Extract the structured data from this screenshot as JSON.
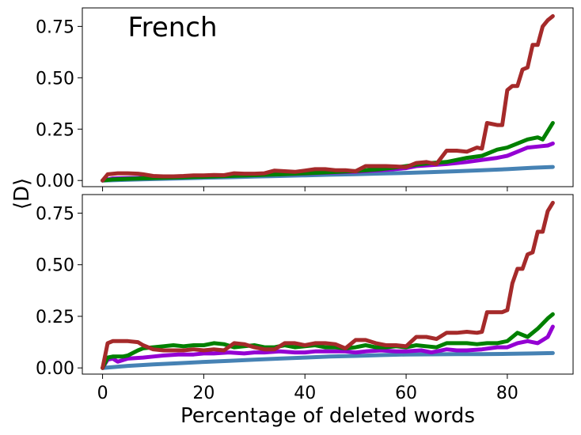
{
  "figure": {
    "ylabel": "⟨D⟩",
    "xlabel": "Percentage of deleted words"
  },
  "chart_data": [
    {
      "type": "line",
      "title": "",
      "annotation": "French",
      "xlabel": "",
      "ylabel": "⟨D⟩",
      "xlim": [
        -4,
        93
      ],
      "ylim": [
        -0.03,
        0.84
      ],
      "xticks": [
        0,
        20,
        40,
        60,
        80
      ],
      "yticks": [
        0.0,
        0.25,
        0.5,
        0.75
      ],
      "ytick_labels": [
        "0.00",
        "0.25",
        "0.50",
        "0.75"
      ],
      "xtick_labels_visible": false,
      "grid": false,
      "legend": "none",
      "series": [
        {
          "color": "#4682b4",
          "x": [
            0,
            5,
            10,
            15,
            20,
            25,
            30,
            35,
            40,
            45,
            50,
            55,
            60,
            65,
            70,
            75,
            80,
            85,
            89
          ],
          "y": [
            0.0,
            0.004,
            0.007,
            0.01,
            0.013,
            0.016,
            0.019,
            0.022,
            0.025,
            0.028,
            0.031,
            0.034,
            0.037,
            0.041,
            0.045,
            0.05,
            0.055,
            0.062,
            0.066
          ]
        },
        {
          "color": "#9400d3",
          "x": [
            0,
            2,
            5,
            10,
            15,
            20,
            25,
            30,
            35,
            40,
            45,
            50,
            55,
            60,
            62,
            65,
            68,
            70,
            72,
            75,
            78,
            80,
            82,
            84,
            86,
            88,
            89
          ],
          "y": [
            0.0,
            0.01,
            0.012,
            0.014,
            0.017,
            0.02,
            0.023,
            0.027,
            0.03,
            0.034,
            0.038,
            0.043,
            0.05,
            0.06,
            0.07,
            0.075,
            0.08,
            0.085,
            0.09,
            0.1,
            0.11,
            0.12,
            0.14,
            0.16,
            0.165,
            0.17,
            0.18
          ]
        },
        {
          "color": "#008000",
          "x": [
            0,
            2,
            5,
            10,
            15,
            20,
            25,
            30,
            35,
            40,
            45,
            50,
            55,
            60,
            63,
            65,
            68,
            70,
            72,
            75,
            78,
            80,
            82,
            84,
            86,
            87,
            88,
            89
          ],
          "y": [
            0.0,
            0.005,
            0.008,
            0.012,
            0.015,
            0.018,
            0.022,
            0.026,
            0.03,
            0.035,
            0.04,
            0.046,
            0.055,
            0.07,
            0.08,
            0.085,
            0.09,
            0.1,
            0.11,
            0.12,
            0.15,
            0.16,
            0.18,
            0.2,
            0.21,
            0.2,
            0.24,
            0.28
          ]
        },
        {
          "color": "#a52a2a",
          "x": [
            0,
            1,
            3,
            5,
            7,
            8,
            10,
            12,
            14,
            16,
            18,
            20,
            22,
            24,
            26,
            28,
            30,
            32,
            34,
            36,
            38,
            40,
            42,
            44,
            46,
            48,
            50,
            52,
            54,
            56,
            58,
            60,
            62,
            64,
            66,
            68,
            70,
            72,
            74,
            75,
            76,
            78,
            79,
            80,
            81,
            82,
            83,
            84,
            85,
            86,
            87,
            88,
            89
          ],
          "y": [
            0.0,
            0.03,
            0.035,
            0.035,
            0.033,
            0.03,
            0.022,
            0.02,
            0.02,
            0.022,
            0.025,
            0.025,
            0.027,
            0.026,
            0.035,
            0.033,
            0.033,
            0.035,
            0.048,
            0.045,
            0.042,
            0.048,
            0.055,
            0.055,
            0.05,
            0.05,
            0.045,
            0.07,
            0.07,
            0.07,
            0.068,
            0.065,
            0.085,
            0.09,
            0.08,
            0.145,
            0.145,
            0.14,
            0.16,
            0.155,
            0.28,
            0.27,
            0.27,
            0.44,
            0.46,
            0.46,
            0.54,
            0.55,
            0.66,
            0.66,
            0.75,
            0.78,
            0.8
          ]
        }
      ]
    },
    {
      "type": "line",
      "title": "",
      "xlabel": "Percentage of deleted words",
      "ylabel": "⟨D⟩",
      "xlim": [
        -4,
        93
      ],
      "ylim": [
        -0.03,
        0.84
      ],
      "xticks": [
        0,
        20,
        40,
        60,
        80
      ],
      "xtick_labels": [
        "0",
        "20",
        "40",
        "60",
        "80"
      ],
      "yticks": [
        0.0,
        0.25,
        0.5,
        0.75
      ],
      "ytick_labels": [
        "0.00",
        "0.25",
        "0.50",
        "0.75"
      ],
      "grid": false,
      "legend": "none",
      "series": [
        {
          "color": "#4682b4",
          "x": [
            0,
            5,
            10,
            15,
            20,
            25,
            30,
            35,
            40,
            45,
            50,
            55,
            60,
            65,
            70,
            75,
            80,
            85,
            89
          ],
          "y": [
            0.0,
            0.01,
            0.017,
            0.023,
            0.029,
            0.034,
            0.04,
            0.045,
            0.05,
            0.055,
            0.058,
            0.062,
            0.065,
            0.066,
            0.067,
            0.067,
            0.068,
            0.07,
            0.072
          ]
        },
        {
          "color": "#9400d3",
          "x": [
            0,
            1,
            2,
            3,
            5,
            8,
            10,
            12,
            15,
            18,
            20,
            22,
            25,
            28,
            30,
            32,
            35,
            38,
            40,
            42,
            45,
            48,
            50,
            52,
            55,
            58,
            60,
            63,
            65,
            68,
            70,
            72,
            75,
            78,
            80,
            82,
            84,
            86,
            88,
            89
          ],
          "y": [
            0.0,
            0.04,
            0.045,
            0.03,
            0.045,
            0.05,
            0.055,
            0.06,
            0.065,
            0.065,
            0.07,
            0.07,
            0.075,
            0.07,
            0.075,
            0.075,
            0.08,
            0.075,
            0.075,
            0.08,
            0.08,
            0.08,
            0.075,
            0.08,
            0.085,
            0.08,
            0.08,
            0.085,
            0.075,
            0.09,
            0.085,
            0.085,
            0.09,
            0.1,
            0.1,
            0.12,
            0.13,
            0.12,
            0.15,
            0.2
          ]
        },
        {
          "color": "#008000",
          "x": [
            0,
            1,
            2,
            4,
            5,
            7,
            8,
            10,
            12,
            14,
            16,
            18,
            20,
            22,
            24,
            26,
            28,
            30,
            32,
            34,
            36,
            38,
            40,
            42,
            44,
            46,
            48,
            50,
            52,
            54,
            56,
            58,
            60,
            62,
            64,
            66,
            68,
            70,
            72,
            74,
            76,
            78,
            80,
            82,
            84,
            86,
            88,
            89
          ],
          "y": [
            0.0,
            0.05,
            0.055,
            0.055,
            0.06,
            0.085,
            0.095,
            0.1,
            0.105,
            0.11,
            0.105,
            0.11,
            0.11,
            0.12,
            0.115,
            0.1,
            0.105,
            0.11,
            0.1,
            0.1,
            0.11,
            0.1,
            0.105,
            0.11,
            0.1,
            0.1,
            0.095,
            0.1,
            0.11,
            0.1,
            0.1,
            0.105,
            0.1,
            0.11,
            0.105,
            0.1,
            0.12,
            0.12,
            0.12,
            0.115,
            0.12,
            0.12,
            0.13,
            0.17,
            0.15,
            0.19,
            0.24,
            0.26
          ]
        },
        {
          "color": "#a52a2a",
          "x": [
            0,
            1,
            2,
            4,
            5,
            7,
            8,
            10,
            12,
            14,
            16,
            18,
            20,
            22,
            24,
            26,
            28,
            30,
            32,
            34,
            36,
            38,
            40,
            42,
            44,
            46,
            48,
            50,
            52,
            54,
            56,
            58,
            60,
            62,
            64,
            66,
            68,
            70,
            72,
            74,
            75,
            76,
            78,
            79,
            80,
            81,
            82,
            83,
            84,
            85,
            86,
            87,
            88,
            89
          ],
          "y": [
            0.0,
            0.12,
            0.13,
            0.13,
            0.13,
            0.125,
            0.11,
            0.09,
            0.085,
            0.085,
            0.085,
            0.09,
            0.085,
            0.09,
            0.085,
            0.12,
            0.115,
            0.1,
            0.09,
            0.09,
            0.12,
            0.12,
            0.11,
            0.12,
            0.12,
            0.115,
            0.095,
            0.135,
            0.135,
            0.12,
            0.11,
            0.11,
            0.105,
            0.15,
            0.15,
            0.14,
            0.17,
            0.17,
            0.175,
            0.17,
            0.175,
            0.27,
            0.27,
            0.27,
            0.28,
            0.41,
            0.48,
            0.48,
            0.55,
            0.56,
            0.66,
            0.66,
            0.76,
            0.8
          ]
        }
      ]
    }
  ]
}
